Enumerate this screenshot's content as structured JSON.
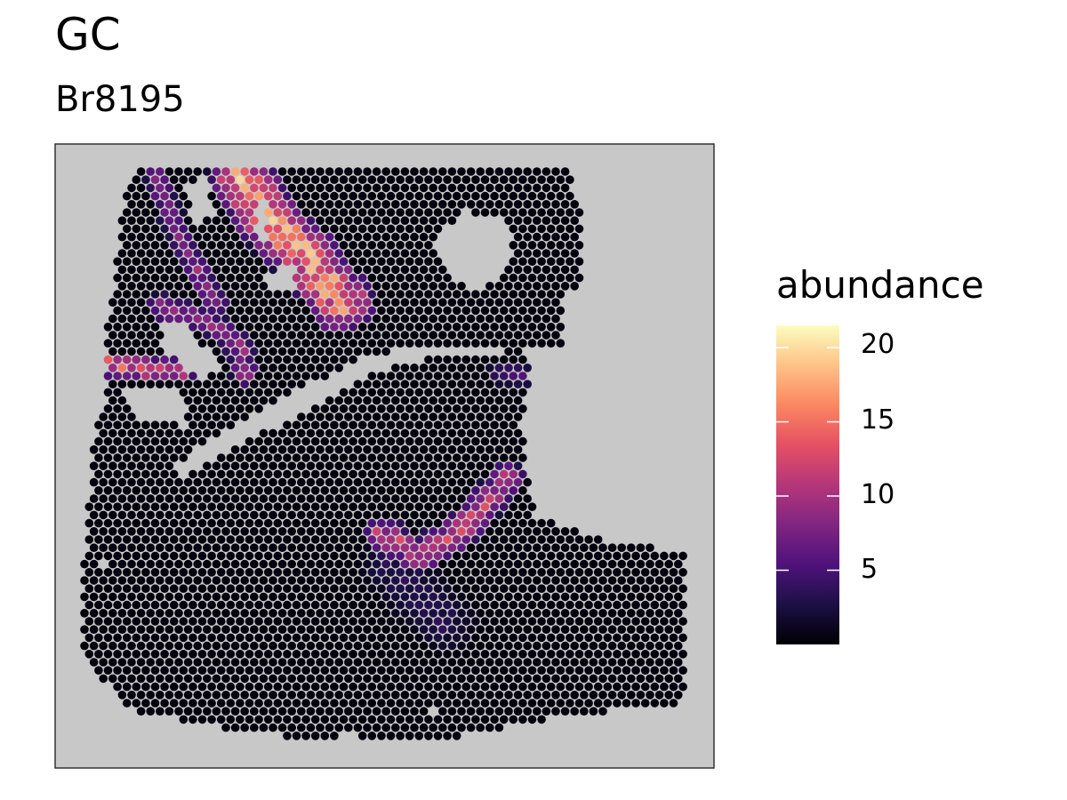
{
  "chart_data": {
    "type": "scatter",
    "title": "GC",
    "subtitle": "Br8195",
    "legend": {
      "title": "abundance",
      "position": "right",
      "ticks": [
        "5",
        "10",
        "15",
        "20"
      ],
      "range": [
        0,
        21.5
      ],
      "colormap": "magma"
    },
    "panel_background": "#c8c8c8",
    "spot_base_color": "#050308",
    "grid": false,
    "high_abundance_regions": [
      {
        "region": "upper-left diagonal band",
        "peak_abundance": 21
      },
      {
        "region": "left lobe ring",
        "peak_abundance": 17
      },
      {
        "region": "lower-center diagonal band",
        "peak_abundance": 14
      },
      {
        "region": "central crease edge",
        "peak_abundance": 7
      }
    ]
  },
  "colors": {
    "magma": [
      "#000004",
      "#1c1044",
      "#4f127b",
      "#812581",
      "#b5367a",
      "#e55064",
      "#fb8761",
      "#fec287",
      "#fcfdbf"
    ]
  }
}
